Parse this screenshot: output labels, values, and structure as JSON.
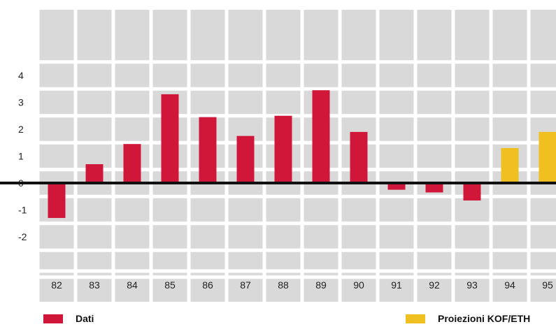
{
  "chart_data": {
    "type": "bar",
    "categories": [
      "82",
      "83",
      "84",
      "85",
      "86",
      "87",
      "88",
      "89",
      "90",
      "91",
      "92",
      "93",
      "94",
      "95"
    ],
    "series": [
      {
        "name": "Dati",
        "color": "#d0173a",
        "values": [
          -1.3,
          0.7,
          1.45,
          3.3,
          2.45,
          1.75,
          2.5,
          3.45,
          1.9,
          -0.25,
          -0.35,
          -0.65,
          null,
          null
        ]
      },
      {
        "name": "Proiezioni KOF/ETH",
        "color": "#f0c020",
        "values": [
          null,
          null,
          null,
          null,
          null,
          null,
          null,
          null,
          null,
          null,
          null,
          null,
          1.3,
          1.9
        ]
      }
    ],
    "yticks": [
      4,
      3,
      2,
      1,
      0,
      -1,
      -2
    ],
    "ylim": [
      -2.5,
      4.5
    ],
    "grid": true,
    "legend_position": "bottom",
    "title": "",
    "xlabel": "",
    "ylabel": ""
  },
  "colors": {
    "grid_cell": "#d9d9d9",
    "grid_line": "#ffffff",
    "zero_line": "#111111"
  }
}
